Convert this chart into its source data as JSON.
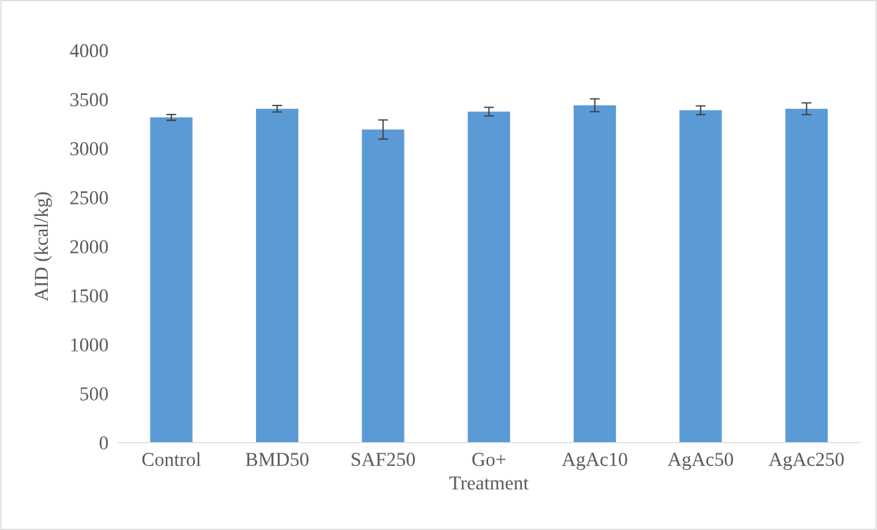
{
  "chart_data": {
    "type": "bar",
    "xlabel": "Treatment",
    "ylabel": "AID (kcal/kg)",
    "categories": [
      "Control",
      "BMD50",
      "SAF250",
      "Go+",
      "AgAc10",
      "AgAc50",
      "AgAc250"
    ],
    "values": [
      3316,
      3404,
      3193,
      3375,
      3440,
      3389,
      3404
    ],
    "errors": [
      30,
      33,
      98,
      44,
      65,
      45,
      60
    ],
    "color": "#5b9bd5",
    "ylim": [
      0,
      4000
    ],
    "yticks": [
      0,
      500,
      1000,
      1500,
      2000,
      2500,
      3000,
      3500,
      4000
    ],
    "grid": false
  }
}
